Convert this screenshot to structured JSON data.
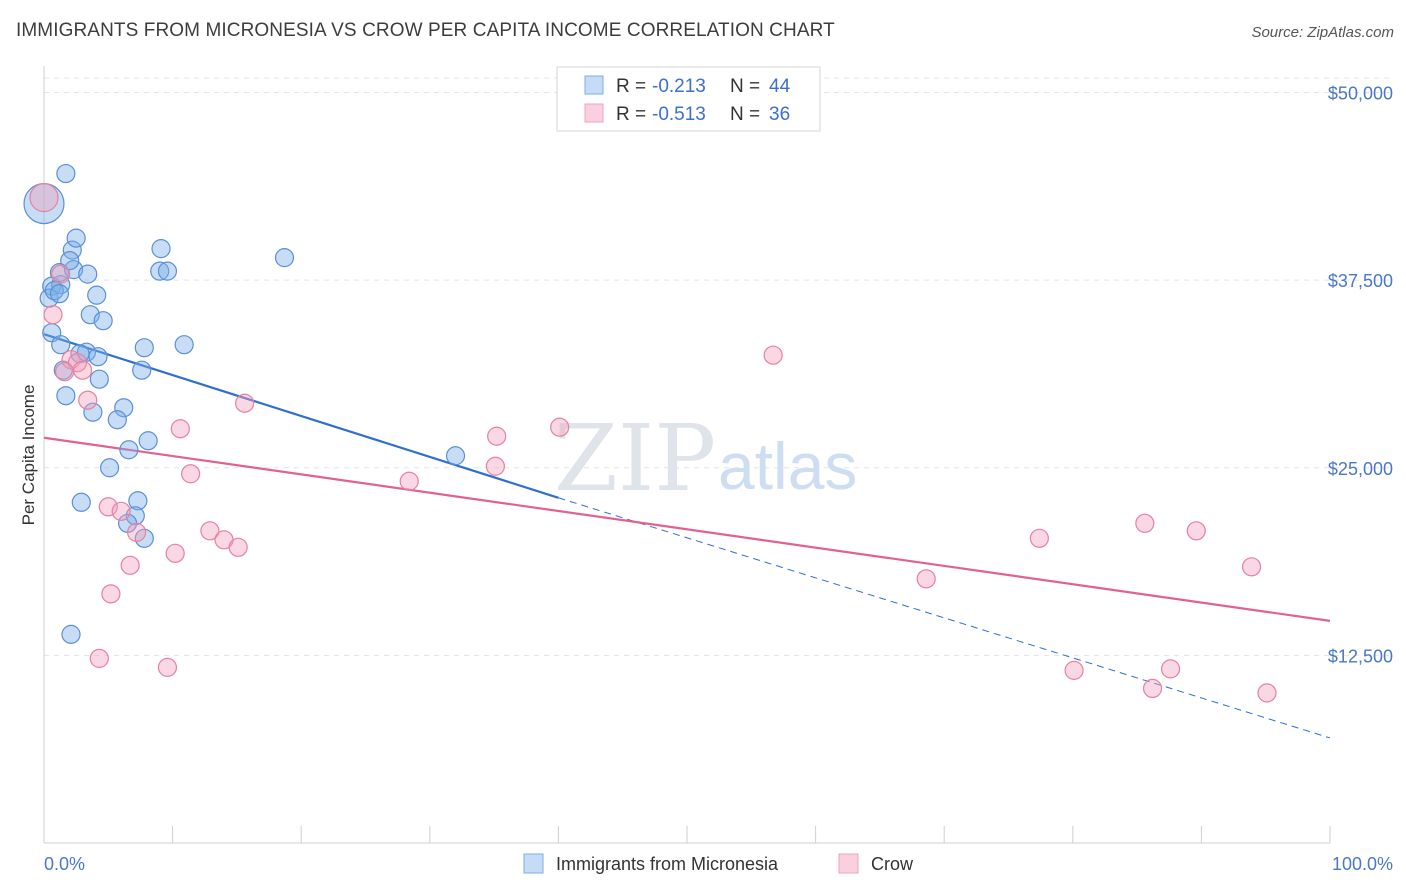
{
  "title": "IMMIGRANTS FROM MICRONESIA VS CROW PER CAPITA INCOME CORRELATION CHART",
  "source": "Source: ZipAtlas.com",
  "watermark": {
    "part1": "ZIP",
    "part2": "atlas"
  },
  "legend_top": [
    {
      "r_label": "R = ",
      "r_value": "-0.213",
      "n_label": "N = ",
      "n_value": "44",
      "color": "#7aaee8"
    },
    {
      "r_label": "R = ",
      "r_value": "-0.513",
      "n_label": "N = ",
      "n_value": "36",
      "color": "#f0a0bc"
    }
  ],
  "chart_data": {
    "type": "scatter",
    "title": "IMMIGRANTS FROM MICRONESIA VS CROW PER CAPITA INCOME CORRELATION CHART",
    "ylabel": "Per Capita Income",
    "xlim": [
      0,
      100
    ],
    "ylim": [
      0,
      52500
    ],
    "x_tick_labels": [
      "0.0%",
      "100.0%"
    ],
    "y_ticks": [
      12500,
      25000,
      37500,
      50000
    ],
    "y_tick_labels": [
      "$12,500",
      "$25,000",
      "$37,500",
      "$50,000"
    ],
    "grid": true,
    "legend_position": "top-center and bottom",
    "series": [
      {
        "name": "Immigrants from Micronesia",
        "color": "#7aaee8",
        "stroke": "#5b8fd6",
        "trend": {
          "x0": 0,
          "y0": 33900,
          "x1": 40,
          "y1": 23000,
          "dashed_to_x": 100,
          "dashed_to_y": 7000,
          "color": "#2f6fd0"
        },
        "points": [
          [
            0,
            42600,
            20
          ],
          [
            1.7,
            44600,
            9
          ],
          [
            0.6,
            37100,
            9
          ],
          [
            0.4,
            36300,
            9
          ],
          [
            1.3,
            37200,
            9
          ],
          [
            1.2,
            38000,
            9
          ],
          [
            2.3,
            38200,
            9
          ],
          [
            3.4,
            37900,
            9
          ],
          [
            2.2,
            39500,
            9
          ],
          [
            2.5,
            40300,
            9
          ],
          [
            2.0,
            38800,
            9
          ],
          [
            4.1,
            36500,
            9
          ],
          [
            3.6,
            35200,
            9
          ],
          [
            4.6,
            34800,
            9
          ],
          [
            0.6,
            34000,
            9
          ],
          [
            1.3,
            33200,
            9
          ],
          [
            3.3,
            32700,
            9
          ],
          [
            2.8,
            32600,
            9
          ],
          [
            1.5,
            31500,
            9
          ],
          [
            4.3,
            30900,
            9
          ],
          [
            1.7,
            29800,
            9
          ],
          [
            3.8,
            28700,
            9
          ],
          [
            6.2,
            29000,
            9
          ],
          [
            5.7,
            28200,
            9
          ],
          [
            8.1,
            26800,
            9
          ],
          [
            6.6,
            26200,
            9
          ],
          [
            5.1,
            25000,
            9
          ],
          [
            2.9,
            22700,
            9
          ],
          [
            7.3,
            22800,
            9
          ],
          [
            7.1,
            21800,
            9
          ],
          [
            6.5,
            21300,
            9
          ],
          [
            7.8,
            20300,
            9
          ],
          [
            7.8,
            33000,
            9
          ],
          [
            10.9,
            33200,
            9
          ],
          [
            7.6,
            31500,
            9
          ],
          [
            9.0,
            38100,
            9
          ],
          [
            9.1,
            39600,
            9
          ],
          [
            9.6,
            38100,
            9
          ],
          [
            18.7,
            39000,
            9
          ],
          [
            32.0,
            25800,
            9
          ],
          [
            2.1,
            13900,
            9
          ],
          [
            0.8,
            36800,
            9
          ],
          [
            1.2,
            36600,
            9
          ],
          [
            4.2,
            32400,
            9
          ]
        ]
      },
      {
        "name": "Crow",
        "color": "#f0a0bc",
        "stroke": "#e6819f",
        "trend": {
          "x0": 0,
          "y0": 27000,
          "x1": 100,
          "y1": 14800,
          "color": "#e0628d"
        },
        "points": [
          [
            0,
            43000,
            14
          ],
          [
            1.3,
            37900,
            9
          ],
          [
            0.7,
            35200,
            9
          ],
          [
            2.1,
            32200,
            9
          ],
          [
            2.6,
            32000,
            9
          ],
          [
            1.6,
            31400,
            9
          ],
          [
            3.0,
            31500,
            9
          ],
          [
            3.4,
            29500,
            9
          ],
          [
            10.6,
            27600,
            9
          ],
          [
            11.4,
            24600,
            9
          ],
          [
            5.0,
            22400,
            9
          ],
          [
            6.0,
            22100,
            9
          ],
          [
            7.2,
            20700,
            9
          ],
          [
            12.9,
            20800,
            9
          ],
          [
            14.0,
            20200,
            9
          ],
          [
            15.1,
            19700,
            9
          ],
          [
            10.2,
            19300,
            9
          ],
          [
            6.7,
            18500,
            9
          ],
          [
            5.2,
            16600,
            9
          ],
          [
            4.3,
            12300,
            9
          ],
          [
            9.6,
            11700,
            9
          ],
          [
            15.6,
            29300,
            9
          ],
          [
            28.4,
            24100,
            9
          ],
          [
            35.1,
            25100,
            9
          ],
          [
            35.2,
            27100,
            9
          ],
          [
            40.1,
            27700,
            9
          ],
          [
            56.7,
            32500,
            9
          ],
          [
            68.6,
            17600,
            9
          ],
          [
            77.4,
            20300,
            9
          ],
          [
            85.6,
            21300,
            9
          ],
          [
            89.6,
            20800,
            9
          ],
          [
            93.9,
            18400,
            9
          ],
          [
            80.1,
            11500,
            9
          ],
          [
            86.2,
            10300,
            9
          ],
          [
            87.6,
            11600,
            9
          ],
          [
            95.1,
            10000,
            9
          ]
        ]
      }
    ]
  },
  "legend_bottom": [
    {
      "label": "Immigrants from Micronesia",
      "color": "#7aaee8"
    },
    {
      "label": "Crow",
      "color": "#f0a0bc"
    }
  ]
}
